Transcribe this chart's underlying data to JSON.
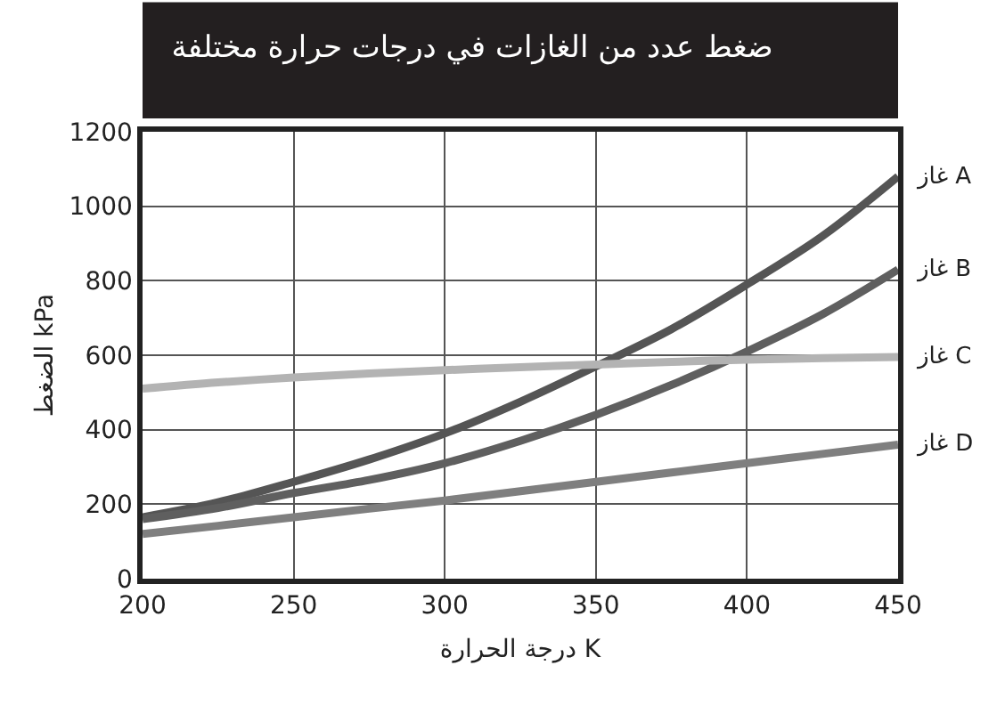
{
  "chart_data": {
    "type": "line",
    "title": "ضغط عدد من الغازات في درجات حرارة مختلفة",
    "xlabel": "درجة الحرارة K",
    "ylabel": "الضغط kPa",
    "x": [
      200,
      225,
      250,
      275,
      300,
      325,
      350,
      375,
      400,
      425,
      450
    ],
    "series": [
      {
        "name": "غاز A",
        "color": "#555555",
        "values": [
          165,
          205,
          260,
          320,
          390,
          475,
          570,
          670,
          790,
          920,
          1080
        ]
      },
      {
        "name": "غاز B",
        "color": "#5f5f5f",
        "values": [
          160,
          190,
          230,
          265,
          310,
          370,
          440,
          520,
          610,
          710,
          830
        ]
      },
      {
        "name": "غاز C",
        "color": "#b3b3b3",
        "values": [
          510,
          527,
          540,
          551,
          560,
          568,
          575,
          582,
          588,
          592,
          595
        ]
      },
      {
        "name": "غاز D",
        "color": "#7f7f7f",
        "values": [
          120,
          142,
          165,
          188,
          210,
          235,
          260,
          285,
          310,
          335,
          360
        ]
      }
    ],
    "xlim": [
      200,
      450
    ],
    "xticks": [
      200,
      250,
      300,
      350,
      400,
      450
    ],
    "ylim": [
      0,
      1200
    ],
    "yticks": [
      0,
      200,
      400,
      600,
      800,
      1000,
      1200
    ],
    "grid": true,
    "legend": false,
    "marker": "none",
    "line_style": "solid"
  }
}
